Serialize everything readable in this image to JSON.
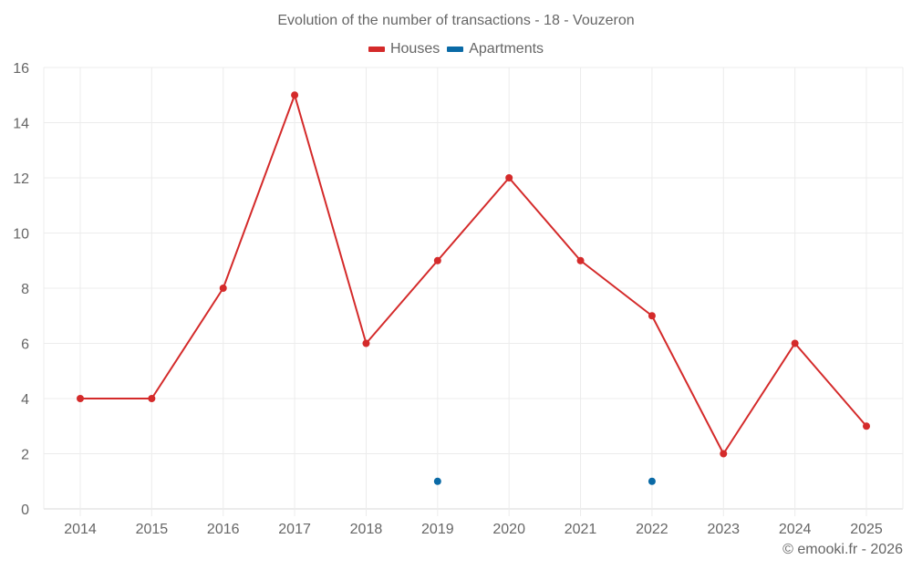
{
  "chart_data": {
    "type": "line",
    "title": "Evolution of the number of transactions - 18 - Vouzeron",
    "xlabel": "",
    "ylabel": "",
    "categories": [
      "2014",
      "2015",
      "2016",
      "2017",
      "2018",
      "2019",
      "2020",
      "2021",
      "2022",
      "2023",
      "2024",
      "2025"
    ],
    "series": [
      {
        "name": "Houses",
        "color": "#d42a2a",
        "values": [
          4,
          4,
          8,
          15,
          6,
          9,
          12,
          9,
          7,
          2,
          6,
          3
        ]
      },
      {
        "name": "Apartments",
        "color": "#0a6aa6",
        "values": [
          null,
          null,
          null,
          null,
          null,
          1,
          null,
          null,
          1,
          null,
          null,
          null
        ]
      }
    ],
    "ylim": [
      0,
      16
    ],
    "yticks": [
      0,
      2,
      4,
      6,
      8,
      10,
      12,
      14,
      16
    ],
    "grid": true,
    "legend_position": "top"
  },
  "header": {
    "title": "Evolution of the number of transactions - 18 - Vouzeron"
  },
  "legend": [
    {
      "label": "Houses",
      "color": "#d42a2a"
    },
    {
      "label": "Apartments",
      "color": "#0a6aa6"
    }
  ],
  "footer": {
    "credit": "© emooki.fr - 2026"
  }
}
